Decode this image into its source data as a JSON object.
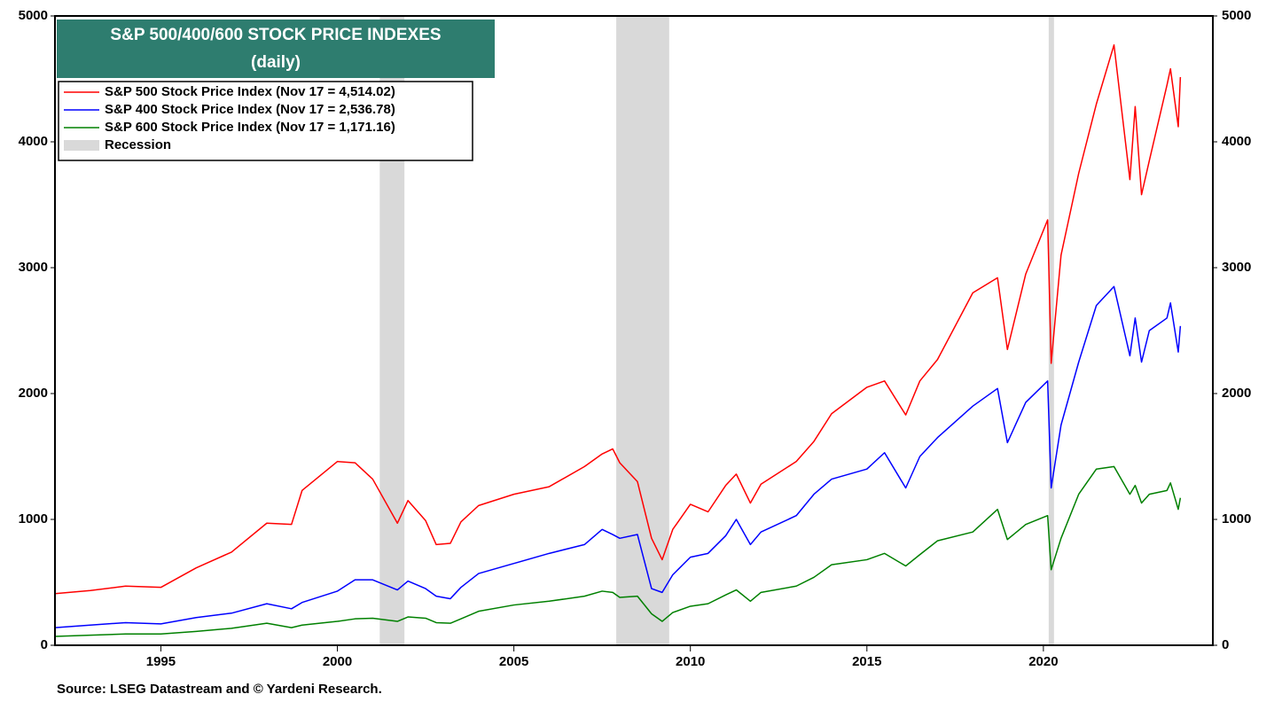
{
  "chart_data": {
    "type": "line",
    "title": "S&P 500/400/600 STOCK PRICE INDEXES",
    "subtitle": "(daily)",
    "source": "Source: LSEG Datastream and © Yardeni Research.",
    "x": [
      1992,
      1993,
      1994,
      1995,
      1996,
      1997,
      1998,
      1998.7,
      1999,
      2000,
      2000.5,
      2001,
      2001.7,
      2002,
      2002.5,
      2002.8,
      2003.2,
      2003.5,
      2004,
      2005,
      2006,
      2007,
      2007.5,
      2007.8,
      2008,
      2008.5,
      2008.9,
      2009.2,
      2009.5,
      2010,
      2010.5,
      2011,
      2011.3,
      2011.7,
      2012,
      2013,
      2013.5,
      2014,
      2015,
      2015.5,
      2016.1,
      2016.5,
      2017,
      2018,
      2018.7,
      2018.98,
      2019.5,
      2020.12,
      2020.22,
      2020.5,
      2021,
      2021.5,
      2022,
      2022.45,
      2022.6,
      2022.78,
      2023,
      2023.5,
      2023.6,
      2023.82,
      2023.88
    ],
    "series": [
      {
        "name": "S&P 500 Stock Price Index (Nov 17 = 4,514.02)",
        "color": "#ff0000",
        "values": [
          410,
          435,
          470,
          460,
          615,
          740,
          970,
          960,
          1230,
          1460,
          1450,
          1320,
          970,
          1150,
          990,
          800,
          810,
          980,
          1110,
          1200,
          1260,
          1420,
          1520,
          1560,
          1450,
          1300,
          850,
          680,
          920,
          1120,
          1060,
          1270,
          1360,
          1130,
          1280,
          1460,
          1620,
          1840,
          2050,
          2100,
          1830,
          2100,
          2270,
          2800,
          2920,
          2350,
          2950,
          3380,
          2240,
          3100,
          3750,
          4300,
          4770,
          3700,
          4280,
          3580,
          3850,
          4450,
          4580,
          4120,
          4514.02
        ]
      },
      {
        "name": "S&P 400 Stock Price Index (Nov 17 = 2,536.78)",
        "color": "#0000ff",
        "values": [
          140,
          160,
          180,
          170,
          220,
          255,
          330,
          290,
          340,
          430,
          520,
          520,
          440,
          510,
          450,
          390,
          370,
          460,
          570,
          650,
          730,
          800,
          920,
          880,
          850,
          880,
          450,
          420,
          560,
          700,
          730,
          870,
          1000,
          800,
          900,
          1030,
          1200,
          1320,
          1400,
          1530,
          1250,
          1500,
          1650,
          1900,
          2040,
          1610,
          1930,
          2100,
          1250,
          1750,
          2250,
          2700,
          2850,
          2300,
          2600,
          2250,
          2500,
          2600,
          2720,
          2330,
          2536.78
        ]
      },
      {
        "name": "S&P 600 Stock Price Index (Nov 17 = 1,171.16)",
        "color": "#008000",
        "values": [
          70,
          80,
          90,
          90,
          110,
          135,
          175,
          140,
          160,
          190,
          210,
          215,
          190,
          225,
          215,
          180,
          175,
          210,
          270,
          320,
          350,
          390,
          430,
          420,
          380,
          390,
          250,
          190,
          260,
          310,
          330,
          400,
          440,
          350,
          420,
          470,
          540,
          640,
          680,
          730,
          630,
          720,
          830,
          900,
          1080,
          840,
          960,
          1030,
          600,
          850,
          1200,
          1400,
          1420,
          1200,
          1270,
          1130,
          1200,
          1230,
          1290,
          1080,
          1171.16
        ]
      }
    ],
    "recession_label": "Recession",
    "recession_color": "#d9d9d9",
    "recessions": [
      [
        2001.2,
        2001.9
      ],
      [
        2007.9,
        2009.4
      ],
      [
        2020.15,
        2020.3
      ]
    ],
    "xlim": [
      1992,
      2024.8
    ],
    "xticks": [
      1995,
      2000,
      2005,
      2010,
      2015,
      2020
    ],
    "ylim": [
      0,
      5000
    ],
    "yticks": [
      0,
      1000,
      2000,
      3000,
      4000,
      5000
    ],
    "y2lim": [
      0,
      5000
    ],
    "y2ticks": [
      0,
      1000,
      2000,
      3000,
      4000,
      5000
    ],
    "title_color": "#2e7d6f"
  }
}
